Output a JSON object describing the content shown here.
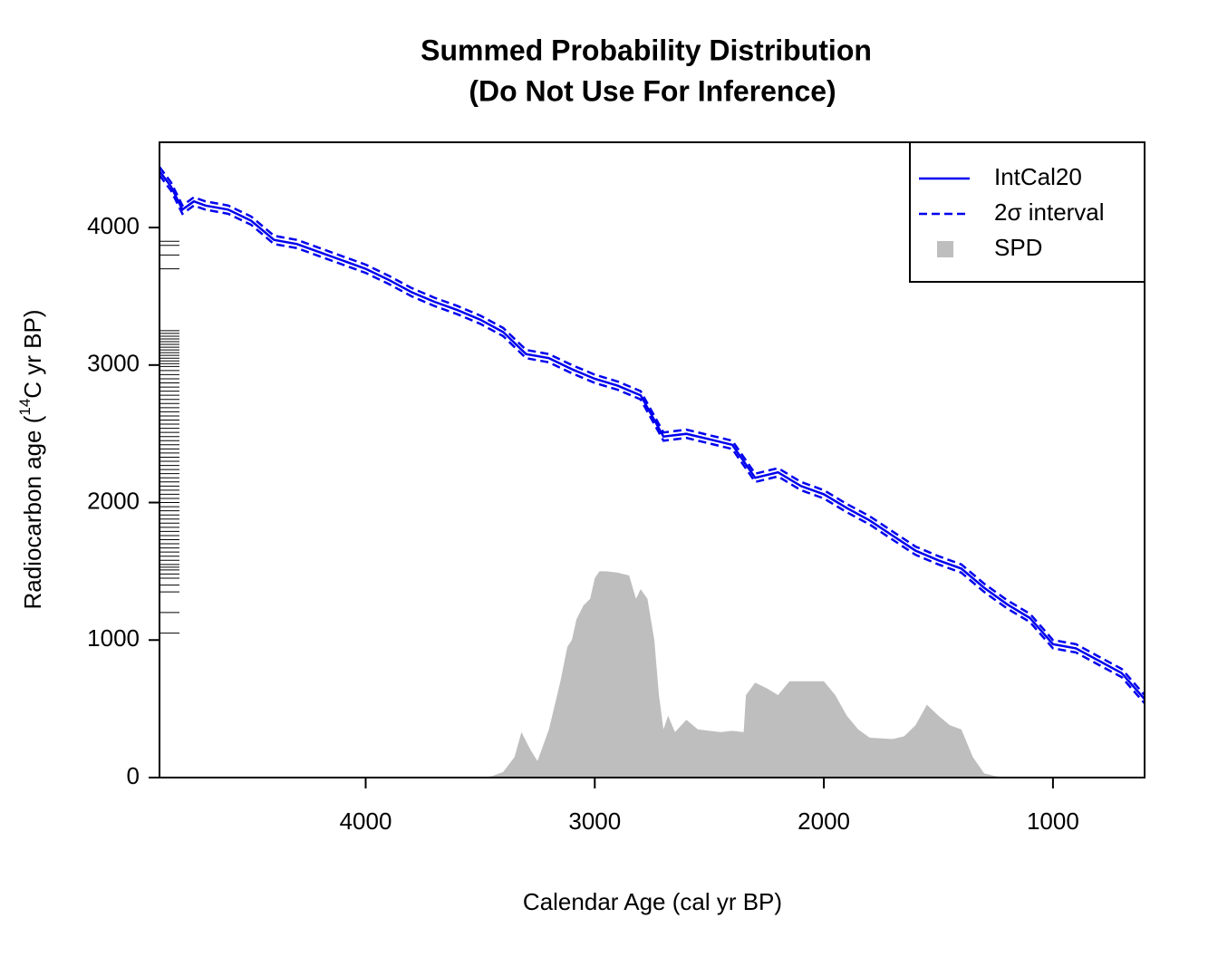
{
  "chart_data": {
    "type": "line",
    "title": [
      "Summed Probability Distribution",
      "(Do Not Use For Inference)"
    ],
    "xlabel": "Calendar Age (cal yr BP)",
    "ylabel": [
      "Radiocarbon age (",
      "14",
      "C yr BP)"
    ],
    "xlim": [
      4900,
      600
    ],
    "ylim": [
      0,
      4620
    ],
    "xticks": [
      4000,
      3000,
      2000,
      1000
    ],
    "yticks": [
      0,
      1000,
      2000,
      3000,
      4000
    ],
    "grid": false,
    "legend": "top-right",
    "x": [
      4900,
      4850,
      4800,
      4750,
      4700,
      4600,
      4500,
      4400,
      4300,
      4200,
      4100,
      4000,
      3900,
      3800,
      3700,
      3600,
      3500,
      3400,
      3300,
      3200,
      3100,
      3000,
      2900,
      2800,
      2700,
      2600,
      2500,
      2400,
      2300,
      2200,
      2100,
      2000,
      1900,
      1800,
      1700,
      1600,
      1500,
      1400,
      1300,
      1200,
      1100,
      1000,
      900,
      800,
      700,
      600
    ],
    "series": [
      {
        "name": "IntCal20",
        "color": "#0000ee",
        "dash": "solid",
        "values": [
          4410,
          4300,
          4130,
          4190,
          4160,
          4130,
          4050,
          3910,
          3880,
          3820,
          3760,
          3700,
          3620,
          3530,
          3460,
          3400,
          3330,
          3240,
          3080,
          3050,
          2970,
          2900,
          2850,
          2780,
          2480,
          2500,
          2460,
          2420,
          2180,
          2220,
          2120,
          2060,
          1960,
          1870,
          1760,
          1650,
          1580,
          1520,
          1380,
          1260,
          1160,
          970,
          940,
          850,
          760,
          570
        ]
      },
      {
        "name": "2σ interval",
        "color": "#0000ee",
        "dash": "dashed",
        "values": [
          4440,
          4330,
          4160,
          4220,
          4190,
          4160,
          4080,
          3940,
          3910,
          3850,
          3790,
          3730,
          3650,
          3560,
          3490,
          3430,
          3360,
          3270,
          3110,
          3080,
          3000,
          2930,
          2880,
          2810,
          2510,
          2530,
          2490,
          2450,
          2210,
          2250,
          2150,
          2090,
          1990,
          1900,
          1790,
          1680,
          1610,
          1550,
          1410,
          1290,
          1190,
          1000,
          970,
          880,
          790,
          600
        ],
        "lower": [
          4380,
          4270,
          4100,
          4160,
          4130,
          4100,
          4020,
          3880,
          3850,
          3790,
          3730,
          3670,
          3590,
          3500,
          3430,
          3370,
          3300,
          3210,
          3050,
          3020,
          2940,
          2870,
          2820,
          2750,
          2450,
          2470,
          2430,
          2390,
          2150,
          2190,
          2090,
          2030,
          1930,
          1840,
          1730,
          1620,
          1550,
          1490,
          1350,
          1230,
          1130,
          940,
          910,
          820,
          730,
          540
        ]
      },
      {
        "name": "SPD",
        "color": "#bebebe",
        "dash": "area",
        "x": [
          4900,
          3500,
          3450,
          3400,
          3350,
          3320,
          3280,
          3250,
          3200,
          3150,
          3120,
          3100,
          3080,
          3050,
          3020,
          3000,
          2980,
          2950,
          2900,
          2850,
          2820,
          2800,
          2770,
          2740,
          2720,
          2700,
          2680,
          2650,
          2600,
          2550,
          2500,
          2450,
          2400,
          2350,
          2340,
          2300,
          2250,
          2200,
          2150,
          2100,
          2000,
          1950,
          1900,
          1850,
          1800,
          1700,
          1650,
          1600,
          1550,
          1500,
          1450,
          1400,
          1350,
          1300,
          1250,
          1200,
          600
        ],
        "values": [
          0,
          0,
          10,
          40,
          150,
          330,
          200,
          120,
          350,
          700,
          950,
          1000,
          1150,
          1250,
          1300,
          1450,
          1500,
          1500,
          1490,
          1470,
          1300,
          1370,
          1300,
          1000,
          600,
          350,
          450,
          330,
          420,
          350,
          340,
          330,
          340,
          330,
          600,
          690,
          650,
          600,
          700,
          700,
          700,
          600,
          450,
          350,
          290,
          280,
          300,
          380,
          530,
          450,
          380,
          350,
          150,
          30,
          10,
          0,
          0
        ]
      }
    ],
    "rug": [
      3900,
      3870,
      3800,
      3700,
      3250,
      3230,
      3210,
      3190,
      3170,
      3150,
      3130,
      3110,
      3090,
      3070,
      3050,
      3030,
      3010,
      2990,
      2960,
      2930,
      2900,
      2870,
      2840,
      2810,
      2780,
      2750,
      2720,
      2690,
      2660,
      2630,
      2600,
      2570,
      2540,
      2510,
      2480,
      2450,
      2420,
      2390,
      2360,
      2330,
      2300,
      2270,
      2240,
      2210,
      2180,
      2150,
      2120,
      2090,
      2060,
      2030,
      2000,
      1970,
      1940,
      1910,
      1880,
      1850,
      1820,
      1790,
      1760,
      1730,
      1700,
      1670,
      1640,
      1610,
      1580,
      1550,
      1530,
      1510,
      1480,
      1450,
      1400,
      1350,
      1200,
      1050
    ]
  }
}
